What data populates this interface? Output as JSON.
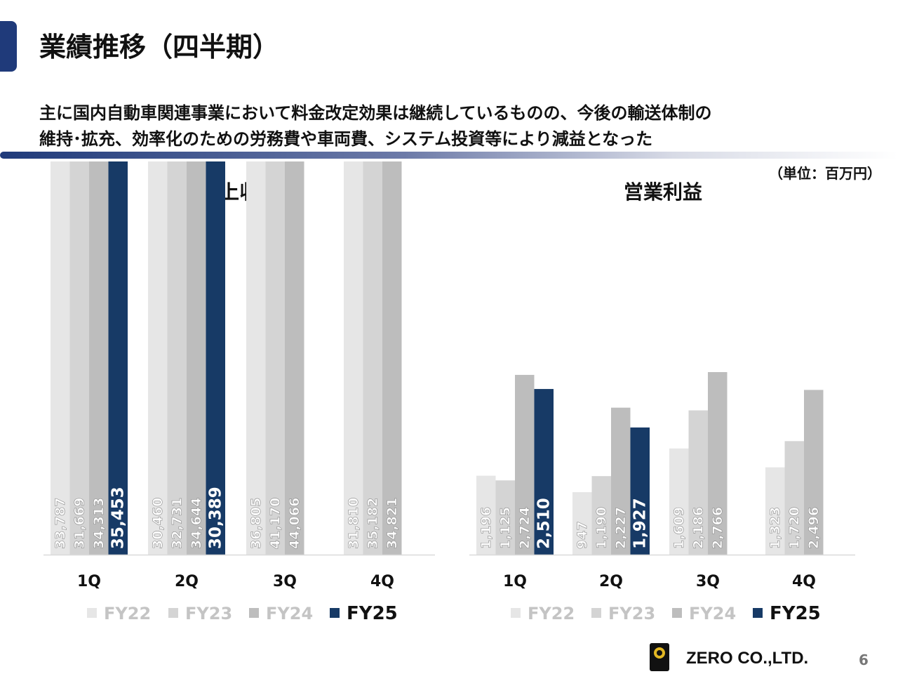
{
  "page": {
    "title": "業績推移（四半期）",
    "subtitle_line1": "主に国内自動車関連事業において料金改定効果は継続しているものの、今後の輸送体制の",
    "subtitle_line2": "維持･拡充、効率化のための労務費や車両費、システム投資等により減益となった",
    "unit": "（単位：百万円）",
    "company": "ZERO CO.,LTD.",
    "page_number": "6",
    "accent_color": "#1f3a7a"
  },
  "series_colors": {
    "FY22": "#e6e6e6",
    "FY23": "#d4d4d4",
    "FY24": "#bdbdbd",
    "FY25": "#173a66"
  },
  "chart_data": [
    {
      "type": "bar",
      "title": "売上収益",
      "categories": [
        "1Q",
        "2Q",
        "3Q",
        "4Q"
      ],
      "series": [
        {
          "name": "FY22",
          "values": [
            33787,
            30460,
            36805,
            31810
          ]
        },
        {
          "name": "FY23",
          "values": [
            31669,
            32731,
            41170,
            35182
          ]
        },
        {
          "name": "FY24",
          "values": [
            34313,
            34644,
            44066,
            34821
          ]
        },
        {
          "name": "FY25",
          "values": [
            35453,
            30389,
            null,
            null
          ]
        }
      ],
      "value_labels": [
        [
          "33,787",
          "30,460",
          "36,805",
          "31,810"
        ],
        [
          "31,669",
          "32,731",
          "41,170",
          "35,182"
        ],
        [
          "34,313",
          "34,644",
          "44,066",
          "34,821"
        ],
        [
          "35,453",
          "30,389",
          "",
          ""
        ]
      ],
      "ylim": [
        12000,
        47000
      ],
      "grid": false,
      "legend": "bottom"
    },
    {
      "type": "bar",
      "title": "営業利益",
      "categories": [
        "1Q",
        "2Q",
        "3Q",
        "4Q"
      ],
      "series": [
        {
          "name": "FY22",
          "values": [
            1196,
            947,
            1609,
            1323
          ]
        },
        {
          "name": "FY23",
          "values": [
            1125,
            1190,
            2186,
            1720
          ]
        },
        {
          "name": "FY24",
          "values": [
            2724,
            2227,
            2766,
            2496
          ]
        },
        {
          "name": "FY25",
          "values": [
            2510,
            1927,
            null,
            null
          ]
        }
      ],
      "value_labels": [
        [
          "1,196",
          "947",
          "1,609",
          "1,323"
        ],
        [
          "1,125",
          "1,190",
          "2,186",
          "1,720"
        ],
        [
          "2,724",
          "2,227",
          "2,766",
          "2,496"
        ],
        [
          "2,510",
          "1,927",
          "",
          ""
        ]
      ],
      "ylim": [
        0,
        4600
      ],
      "grid": false,
      "legend": "bottom"
    }
  ]
}
